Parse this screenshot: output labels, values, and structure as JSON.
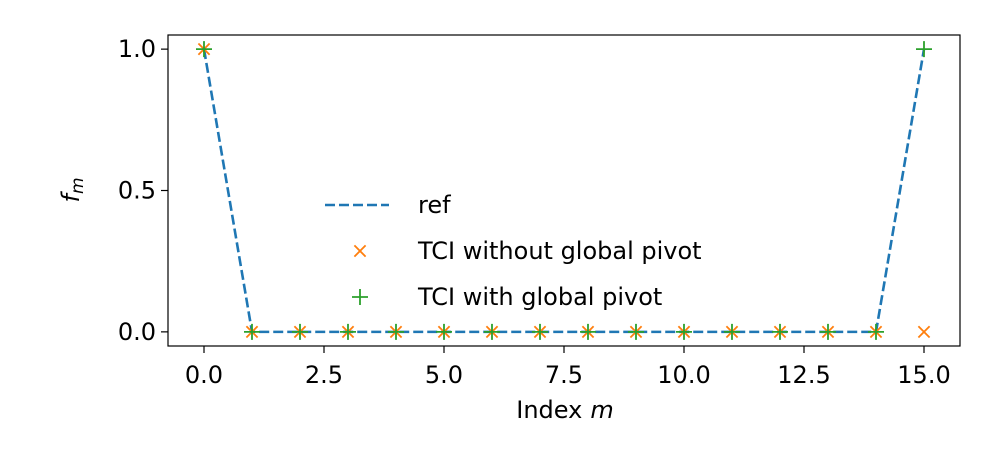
{
  "chart_data": {
    "type": "line",
    "xlabel": [
      "Index",
      "m"
    ],
    "ylabel": [
      "f",
      "m"
    ],
    "xlim": [
      -0.75,
      15.75
    ],
    "ylim": [
      -0.05,
      1.05
    ],
    "xticks": [
      {
        "value": 0,
        "label": "0.0"
      },
      {
        "value": 2.5,
        "label": "2.5"
      },
      {
        "value": 5,
        "label": "5.0"
      },
      {
        "value": 7.5,
        "label": "7.5"
      },
      {
        "value": 10,
        "label": "10.0"
      },
      {
        "value": 12.5,
        "label": "12.5"
      },
      {
        "value": 15,
        "label": "15.0"
      }
    ],
    "yticks": [
      {
        "value": 0,
        "label": "0.0"
      },
      {
        "value": 0.5,
        "label": "0.5"
      },
      {
        "value": 1,
        "label": "1.0"
      }
    ],
    "legend": "center",
    "series": [
      {
        "name": "ref",
        "color": "#1f77b4",
        "linestyle": "dashed",
        "x": [
          0,
          1,
          2,
          3,
          4,
          5,
          6,
          7,
          8,
          9,
          10,
          11,
          12,
          13,
          14,
          15
        ],
        "values": [
          1,
          0,
          0,
          0,
          0,
          0,
          0,
          0,
          0,
          0,
          0,
          0,
          0,
          0,
          0,
          1
        ]
      },
      {
        "name": "TCI without global pivot",
        "color": "#ff7f0e",
        "marker": "x",
        "x": [
          0,
          1,
          2,
          3,
          4,
          5,
          6,
          7,
          8,
          9,
          10,
          11,
          12,
          13,
          14,
          15
        ],
        "values": [
          1,
          0,
          0,
          0,
          0,
          0,
          0,
          0,
          0,
          0,
          0,
          0,
          0,
          0,
          0,
          0
        ]
      },
      {
        "name": "TCI with global pivot",
        "color": "#2ca02c",
        "marker": "+",
        "x": [
          0,
          1,
          2,
          3,
          4,
          5,
          6,
          7,
          8,
          9,
          10,
          11,
          12,
          13,
          14,
          15
        ],
        "values": [
          1,
          0,
          0,
          0,
          0,
          0,
          0,
          0,
          0,
          0,
          0,
          0,
          0,
          0,
          0,
          1
        ]
      }
    ]
  }
}
